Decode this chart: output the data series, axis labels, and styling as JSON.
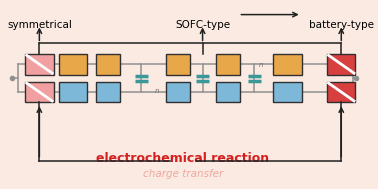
{
  "bg_color": "#faeae2",
  "title_charge": "charge transfer",
  "title_electrochem": "electrochemical reaction",
  "title_charge_color": "#f0a8a0",
  "title_electrochem_color": "#d42020",
  "bottom_labels": [
    "symmetrical",
    "SOFC-type",
    "battery-type"
  ],
  "blue_color": "#7db8d8",
  "orange_color": "#e8a84a",
  "red_dark_color": "#d84040",
  "pink_color": "#f0a0a0",
  "teal_color": "#3a9898",
  "line_color": "#909090",
  "box_edge_color": "#303030",
  "arrow_color": "#202020",
  "n_color": "#707070"
}
